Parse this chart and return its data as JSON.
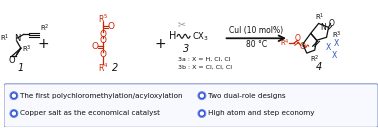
{
  "fig_width": 3.78,
  "fig_height": 1.28,
  "dpi": 100,
  "bg_color": "#ffffff",
  "bullet_color": "#3355cc",
  "bullet_outline": "#6688ee",
  "bullet_points": [
    "The first polychloromethylation/acyloxylation",
    "Copper salt as the economical catalyst",
    "Two dual-role designs",
    "High atom and step economy"
  ],
  "red_color": "#cc2200",
  "blue_color": "#3355bb",
  "black_color": "#111111",
  "gray_color": "#999999",
  "reaction_title": "CuI (10 mol%)",
  "reaction_subtitle": "80 °C",
  "compound3a": "3a : X = H, Cl, Cl",
  "compound3b": "3b : X = Cl, Cl, Cl",
  "box_border": "#8899cc"
}
